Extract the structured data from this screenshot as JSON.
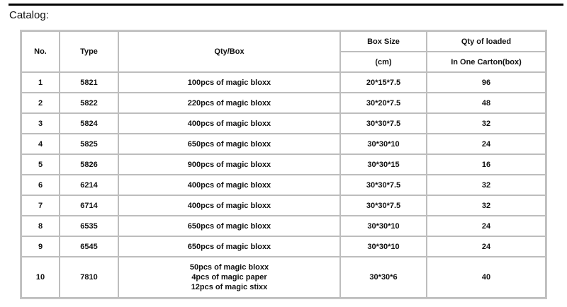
{
  "title": "Catalog:",
  "headers": {
    "no": "No.",
    "type": "Type",
    "qty": "Qty/Box",
    "box_size": "Box Size",
    "box_unit": "(cm)",
    "loaded": "Qty of loaded",
    "loaded_sub": "In One Carton(box)"
  },
  "rows": [
    {
      "no": "1",
      "type": "5821",
      "qty": [
        "100pcs of magic bloxx"
      ],
      "size": "20*15*7.5",
      "loaded": "96"
    },
    {
      "no": "2",
      "type": "5822",
      "qty": [
        "220pcs of magic bloxx"
      ],
      "size": "30*20*7.5",
      "loaded": "48"
    },
    {
      "no": "3",
      "type": "5824",
      "qty": [
        "400pcs of magic bloxx"
      ],
      "size": "30*30*7.5",
      "loaded": "32"
    },
    {
      "no": "4",
      "type": "5825",
      "qty": [
        "650pcs of magic bloxx"
      ],
      "size": "30*30*10",
      "loaded": "24"
    },
    {
      "no": "5",
      "type": "5826",
      "qty": [
        "900pcs of magic bloxx"
      ],
      "size": "30*30*15",
      "loaded": "16"
    },
    {
      "no": "6",
      "type": "6214",
      "qty": [
        "400pcs of magic bloxx"
      ],
      "size": "30*30*7.5",
      "loaded": "32"
    },
    {
      "no": "7",
      "type": "6714",
      "qty": [
        "400pcs of magic bloxx"
      ],
      "size": "30*30*7.5",
      "loaded": "32"
    },
    {
      "no": "8",
      "type": "6535",
      "qty": [
        "650pcs of magic bloxx"
      ],
      "size": "30*30*10",
      "loaded": "24"
    },
    {
      "no": "9",
      "type": "6545",
      "qty": [
        "650pcs of magic bloxx"
      ],
      "size": "30*30*10",
      "loaded": "24"
    },
    {
      "no": "10",
      "type": "7810",
      "qty": [
        "50pcs of magic bloxx",
        "4pcs of magic paper",
        "12pcs of magic stixx"
      ],
      "size": "30*30*6",
      "loaded": "40"
    }
  ]
}
